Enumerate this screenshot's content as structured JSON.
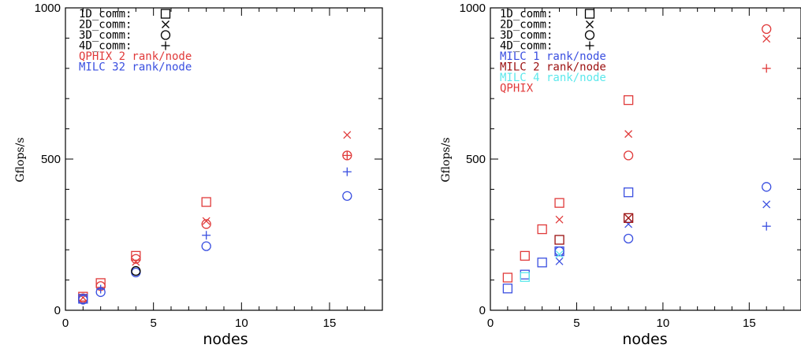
{
  "colors": {
    "black": "#000000",
    "red": "#e03a3a",
    "blue": "#3a4fe0",
    "darkred": "#9b1010",
    "cyan": "#5ce8ec"
  },
  "chart_data": [
    {
      "type": "scatter",
      "title": "",
      "xlabel": "nodes",
      "ylabel": "Gflops/s",
      "xlim": [
        0,
        18
      ],
      "ylim": [
        0,
        1000
      ],
      "xticks": [
        "0",
        "5",
        "10",
        "15"
      ],
      "yticks": [
        "0",
        "500",
        "1000"
      ],
      "grid": false,
      "legend_position": "top-left",
      "marker_legend": [
        {
          "label": "1D_comm:",
          "marker": "square"
        },
        {
          "label": "2D_comm:",
          "marker": "cross"
        },
        {
          "label": "3D_comm:",
          "marker": "circle"
        },
        {
          "label": "4D_comm:",
          "marker": "plus"
        }
      ],
      "color_legend": [
        {
          "label": "QPHIX 2 rank/node",
          "color": "red"
        },
        {
          "label": "MILC 32 rank/node",
          "color": "blue"
        }
      ],
      "series": [
        {
          "name": "QPHIX 2 rank/node",
          "color": "red",
          "marker": "square",
          "x": [
            1,
            2,
            4,
            8
          ],
          "y": [
            45,
            90,
            180,
            358
          ]
        },
        {
          "name": "QPHIX 2 rank/node",
          "color": "red",
          "marker": "cross",
          "x": [
            1,
            4,
            8,
            16
          ],
          "y": [
            42,
            160,
            295,
            580
          ]
        },
        {
          "name": "QPHIX 2 rank/node",
          "color": "red",
          "marker": "circle",
          "x": [
            1,
            2,
            4,
            8,
            16
          ],
          "y": [
            40,
            80,
            170,
            285,
            512
          ]
        },
        {
          "name": "QPHIX 2 rank/node",
          "color": "red",
          "marker": "plus",
          "x": [
            16
          ],
          "y": [
            512
          ]
        },
        {
          "name": "MILC 32 rank/node",
          "color": "blue",
          "marker": "square",
          "x": [
            1
          ],
          "y": [
            38
          ]
        },
        {
          "name": "MILC 32 rank/node",
          "color": "blue",
          "marker": "plus",
          "x": [
            2,
            8,
            16
          ],
          "y": [
            70,
            248,
            458
          ]
        },
        {
          "name": "MILC 32 rank/node",
          "color": "blue",
          "marker": "circle",
          "x": [
            1,
            2,
            4,
            8,
            16
          ],
          "y": [
            35,
            60,
            125,
            212,
            378
          ]
        },
        {
          "name": "",
          "color": "black",
          "marker": "circle",
          "x": [
            4
          ],
          "y": [
            130
          ]
        }
      ]
    },
    {
      "type": "scatter",
      "title": "",
      "xlabel": "nodes",
      "ylabel": "Gflops/s",
      "xlim": [
        0,
        18
      ],
      "ylim": [
        0,
        1000
      ],
      "xticks": [
        "0",
        "5",
        "10",
        "15"
      ],
      "yticks": [
        "0",
        "500",
        "1000"
      ],
      "grid": false,
      "legend_position": "top-left",
      "marker_legend": [
        {
          "label": "1D_comm:",
          "marker": "square"
        },
        {
          "label": "2D_comm:",
          "marker": "cross"
        },
        {
          "label": "3D_comm:",
          "marker": "circle"
        },
        {
          "label": "4D_comm:",
          "marker": "plus"
        }
      ],
      "color_legend": [
        {
          "label": "MILC 1 rank/node",
          "color": "blue"
        },
        {
          "label": "MILC 2 rank/node",
          "color": "darkred"
        },
        {
          "label": "MILC 4 rank/node",
          "color": "cyan"
        },
        {
          "label": "QPHIX",
          "color": "red"
        }
      ],
      "series": [
        {
          "name": "QPHIX",
          "color": "red",
          "marker": "square",
          "x": [
            1,
            2,
            3,
            4,
            8
          ],
          "y": [
            108,
            180,
            268,
            355,
            695
          ]
        },
        {
          "name": "QPHIX",
          "color": "red",
          "marker": "cross",
          "x": [
            4,
            8,
            16
          ],
          "y": [
            300,
            583,
            898
          ]
        },
        {
          "name": "QPHIX",
          "color": "red",
          "marker": "circle",
          "x": [
            8,
            16
          ],
          "y": [
            512,
            930
          ]
        },
        {
          "name": "QPHIX",
          "color": "red",
          "marker": "plus",
          "x": [
            16
          ],
          "y": [
            800
          ]
        },
        {
          "name": "MILC 1 rank/node",
          "color": "blue",
          "marker": "square",
          "x": [
            1,
            2,
            3,
            4,
            8
          ],
          "y": [
            72,
            118,
            158,
            195,
            390
          ]
        },
        {
          "name": "MILC 1 rank/node",
          "color": "blue",
          "marker": "cross",
          "x": [
            4,
            8,
            16
          ],
          "y": [
            162,
            285,
            350
          ]
        },
        {
          "name": "MILC 1 rank/node",
          "color": "blue",
          "marker": "circle",
          "x": [
            4,
            8,
            16
          ],
          "y": [
            195,
            237,
            408
          ]
        },
        {
          "name": "MILC 1 rank/node",
          "color": "blue",
          "marker": "plus",
          "x": [
            16
          ],
          "y": [
            278
          ]
        },
        {
          "name": "MILC 2 rank/node",
          "color": "darkred",
          "marker": "square",
          "x": [
            4,
            8
          ],
          "y": [
            233,
            305
          ]
        },
        {
          "name": "MILC 2 rank/node",
          "color": "darkred",
          "marker": "cross",
          "x": [
            8
          ],
          "y": [
            305
          ]
        },
        {
          "name": "MILC 4 rank/node",
          "color": "cyan",
          "marker": "square",
          "x": [
            2
          ],
          "y": [
            110
          ]
        },
        {
          "name": "MILC 4 rank/node",
          "color": "cyan",
          "marker": "cross",
          "x": [
            4
          ],
          "y": [
            185
          ]
        }
      ]
    }
  ]
}
